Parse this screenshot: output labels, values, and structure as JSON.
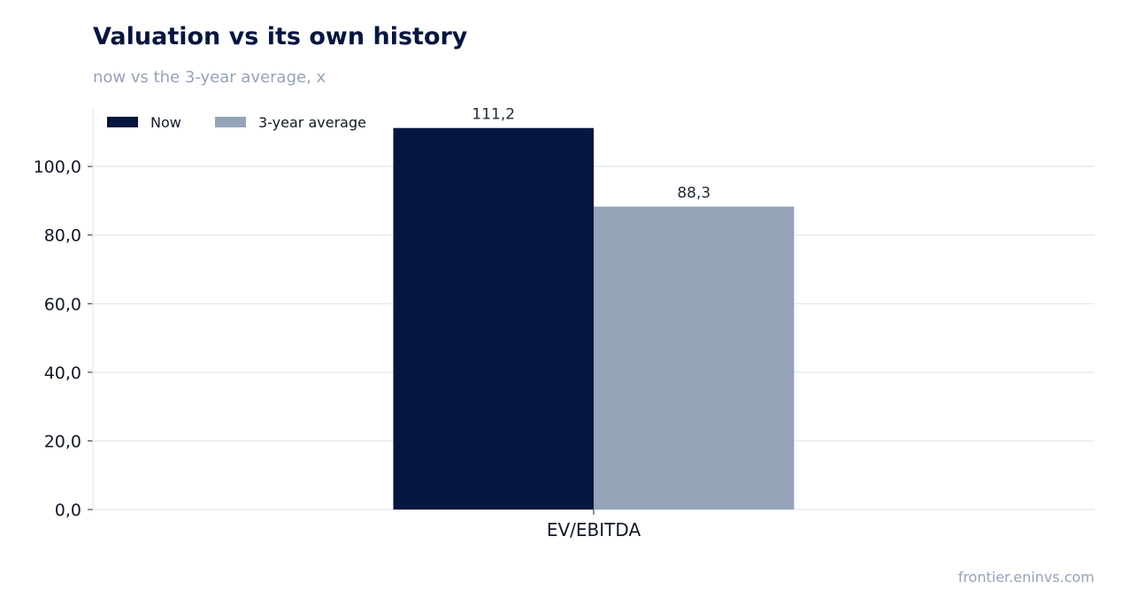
{
  "title": "Valuation vs its own history",
  "subtitle": "now vs the 3-year average, x",
  "source": "frontier.eninvs.com",
  "chart_data": {
    "type": "bar",
    "categories": [
      "EV/EBITDA"
    ],
    "series": [
      {
        "name": "Now",
        "values": [
          111.2
        ],
        "labels": [
          "111,2"
        ],
        "color": "#06163f"
      },
      {
        "name": "3-year average",
        "values": [
          88.3
        ],
        "labels": [
          "88,3"
        ],
        "color": "#94a3b8"
      }
    ],
    "ylim": [
      0,
      116.8
    ],
    "yticks": [
      0,
      20,
      40,
      60,
      80,
      100
    ],
    "ytick_labels": [
      "0,0",
      "20,0",
      "40,0",
      "60,0",
      "80,0",
      "100,0"
    ],
    "grid": true,
    "legend": "top-left"
  }
}
